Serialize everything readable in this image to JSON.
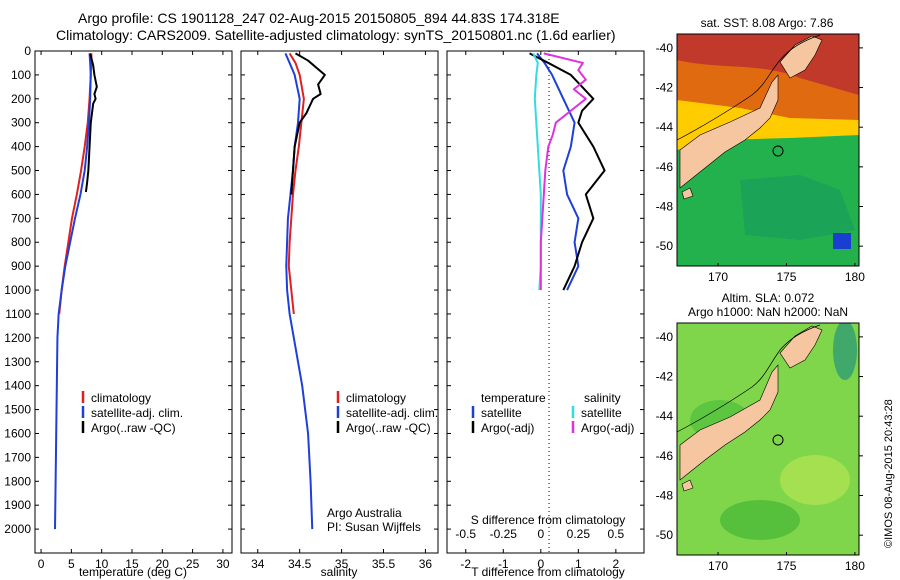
{
  "header": {
    "line1": "Argo profile: CS 1901128_247 02-Aug-2015 20150805_894 44.83S 174.318E",
    "line2": "Climatology: CARS2009. Satellite-adjusted climatology: synTS_20150801.nc (1.6d earlier)"
  },
  "colors": {
    "climatology": "#e02020",
    "satellite": "#1f3fd8",
    "argo": "#000000",
    "satellite_salinity": "#33dddd",
    "argo_salinity_adj": "#dd33dd",
    "land": "#f5c6a0"
  },
  "credit": {
    "line1": "Argo Australia",
    "line2": "PI: Susan Wijffels",
    "stamp": "©IMOS 08-Aug-2015 20:43:28"
  },
  "chart_data": [
    {
      "type": "line",
      "xlabel": "temperature (deg C)",
      "ylabel": "",
      "xlim": [
        -1,
        31.5
      ],
      "ylim": [
        2100,
        0
      ],
      "xticks": [
        "0",
        "5",
        "10",
        "15",
        "20",
        "25",
        "30"
      ],
      "yticks": [
        "0",
        "100",
        "200",
        "300",
        "400",
        "500",
        "600",
        "700",
        "800",
        "900",
        "1000",
        "1100",
        "1200",
        "1300",
        "1400",
        "1500",
        "1600",
        "1700",
        "1800",
        "1900",
        "2000"
      ],
      "legend": [
        "climatology",
        "satellite-adj. clim.",
        "Argo(..raw -QC)"
      ],
      "legend_position": "lower-left",
      "series": [
        {
          "name": "climatology",
          "color": "#e02020",
          "depth": [
            10,
            50,
            100,
            200,
            300,
            400,
            500,
            600,
            700,
            800,
            900,
            1000,
            1100
          ],
          "values": [
            8.3,
            8.3,
            8.2,
            8.0,
            7.7,
            7.2,
            6.6,
            5.9,
            5.1,
            4.5,
            3.9,
            3.4,
            3.0
          ]
        },
        {
          "name": "satellite-adj. clim.",
          "color": "#1f3fd8",
          "depth": [
            10,
            50,
            100,
            200,
            300,
            400,
            500,
            600,
            700,
            800,
            900,
            1000,
            1100,
            1200,
            1400,
            1600,
            1800,
            2000
          ],
          "values": [
            8.0,
            8.1,
            8.2,
            8.1,
            7.9,
            7.6,
            7.2,
            6.5,
            5.6,
            4.8,
            4.0,
            3.4,
            2.9,
            2.7,
            2.6,
            2.5,
            2.4,
            2.3
          ]
        },
        {
          "name": "Argo(..raw -QC)",
          "color": "#000000",
          "depth": [
            10,
            30,
            60,
            100,
            150,
            180,
            200,
            220,
            260,
            300,
            350,
            400,
            450,
            500,
            550,
            590
          ],
          "values": [
            8.1,
            8.3,
            8.6,
            8.8,
            9.2,
            8.8,
            9.0,
            8.6,
            8.4,
            8.2,
            8.1,
            8.0,
            7.9,
            7.8,
            7.6,
            7.4
          ]
        }
      ]
    },
    {
      "type": "line",
      "xlabel": "salinity",
      "ylabel": "",
      "xlim": [
        33.8,
        36.15
      ],
      "ylim": [
        2100,
        0
      ],
      "xticks": [
        "34",
        "34.5",
        "35",
        "35.5",
        "36"
      ],
      "legend": [
        "climatology",
        "satellite-adj. clim.",
        "Argo(..raw -QC)"
      ],
      "legend_position": "lower-left",
      "series": [
        {
          "name": "climatology",
          "color": "#e02020",
          "depth": [
            10,
            50,
            100,
            200,
            300,
            400,
            500,
            600,
            700,
            800,
            900,
            1000,
            1100
          ],
          "values": [
            34.38,
            34.45,
            34.5,
            34.55,
            34.52,
            34.49,
            34.45,
            34.42,
            34.4,
            34.38,
            34.37,
            34.4,
            34.43
          ]
        },
        {
          "name": "satellite-adj. clim.",
          "color": "#1f3fd8",
          "depth": [
            10,
            50,
            100,
            200,
            300,
            400,
            500,
            600,
            700,
            800,
            900,
            1000,
            1100,
            1200,
            1400,
            1600,
            1800,
            2000
          ],
          "values": [
            34.33,
            34.38,
            34.44,
            34.5,
            34.48,
            34.44,
            34.42,
            34.39,
            34.36,
            34.35,
            34.34,
            34.35,
            34.38,
            34.43,
            34.53,
            34.6,
            34.63,
            34.65
          ]
        },
        {
          "name": "Argo(..raw -QC)",
          "color": "#000000",
          "depth": [
            10,
            40,
            70,
            100,
            140,
            180,
            200,
            230,
            260,
            300,
            350,
            400,
            450,
            500,
            550,
            600
          ],
          "values": [
            34.45,
            34.6,
            34.7,
            34.8,
            34.72,
            34.75,
            34.66,
            34.62,
            34.58,
            34.5,
            34.47,
            34.44,
            34.43,
            34.42,
            34.41,
            34.4
          ]
        }
      ]
    },
    {
      "type": "line",
      "xlabel": "T difference from climatology",
      "top_label": "S difference from climatology",
      "xlim": [
        -2.5,
        2.75
      ],
      "ylim": [
        2100,
        0
      ],
      "xticks": [
        "-2",
        "-1",
        "0",
        "1",
        "2"
      ],
      "top_ticks": [
        "-0.5",
        "-0.25",
        "0",
        "0.25",
        "0.5"
      ],
      "legend_headers": [
        "temperature",
        "salinity"
      ],
      "legend": [
        "satellite",
        "Argo(-adj)",
        "satellite",
        "Argo(-adj)"
      ],
      "legend_position": "lower",
      "series": [
        {
          "name": "satellite",
          "variable": "T",
          "color": "#1f3fd8",
          "depth": [
            10,
            50,
            100,
            200,
            300,
            400,
            500,
            600,
            700,
            800,
            900,
            1000
          ],
          "values": [
            -0.1,
            0.1,
            0.3,
            0.6,
            0.9,
            0.8,
            0.6,
            0.7,
            1.0,
            0.9,
            1.0,
            0.7
          ]
        },
        {
          "name": "Argo(-adj)",
          "variable": "T",
          "color": "#000000",
          "depth": [
            10,
            50,
            100,
            150,
            200,
            250,
            300,
            350,
            400,
            500,
            600,
            700,
            800,
            900,
            1000
          ],
          "values": [
            -0.3,
            0.2,
            0.8,
            1.1,
            1.4,
            1.1,
            1.0,
            1.2,
            1.4,
            1.7,
            1.2,
            1.4,
            1.1,
            0.9,
            0.6
          ]
        },
        {
          "name": "satellite",
          "variable": "S",
          "color": "#33dddd",
          "depth": [
            10,
            50,
            100,
            200,
            300,
            400,
            500,
            600,
            700,
            800,
            900,
            1000
          ],
          "values": [
            -0.05,
            -0.02,
            -0.03,
            -0.04,
            -0.03,
            -0.02,
            -0.01,
            0.0,
            0.0,
            0.0,
            0.0,
            -0.01
          ]
        },
        {
          "name": "Argo(-adj)",
          "variable": "S",
          "color": "#dd33dd",
          "depth": [
            10,
            50,
            80,
            120,
            160,
            200,
            250,
            300,
            350,
            400,
            500,
            600,
            700,
            800,
            900,
            1000
          ],
          "values": [
            0.02,
            0.28,
            0.25,
            0.3,
            0.22,
            0.3,
            0.2,
            0.1,
            0.08,
            0.05,
            0.03,
            0.02,
            0.01,
            0.0,
            0.0,
            0.0
          ]
        }
      ]
    },
    {
      "type": "heatmap",
      "title": "sat. SST: 8.08 Argo: 7.86",
      "xlim": [
        167,
        180.3
      ],
      "ylim": [
        -51,
        -39.3
      ],
      "xticks": [
        "170",
        "175",
        "180"
      ],
      "yticks": [
        "-40",
        "-42",
        "-44",
        "-46",
        "-48",
        "-50"
      ],
      "profile_marker": [
        174.318,
        -44.83
      ]
    },
    {
      "type": "heatmap",
      "title_line1": "Altim. SLA: 0.072",
      "title_line2": "Argo h1000: NaN h2000: NaN",
      "xlim": [
        167,
        180.3
      ],
      "ylim": [
        -51,
        -39.3
      ],
      "xticks": [
        "170",
        "175",
        "180"
      ],
      "yticks": [
        "-40",
        "-42",
        "-44",
        "-46",
        "-48",
        "-50"
      ],
      "profile_marker": [
        174.318,
        -44.83
      ]
    }
  ]
}
